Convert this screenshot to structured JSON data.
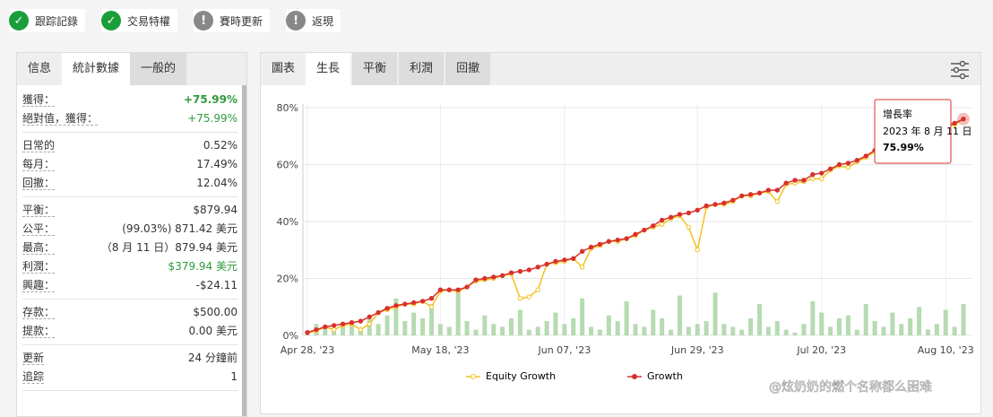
{
  "badges": [
    {
      "label": "跟踪記錄",
      "ok": true
    },
    {
      "label": "交易特權",
      "ok": true
    },
    {
      "label": "賽時更新",
      "ok": false
    },
    {
      "label": "返現",
      "ok": false
    }
  ],
  "stats_tabs": [
    "信息",
    "統計數據",
    "一般的"
  ],
  "stats_active": 1,
  "stats": [
    [
      {
        "label": "獲得：",
        "value": "+75.99%",
        "green": true,
        "bold": true
      },
      {
        "label": "絕對值，獲得：",
        "value": "+75.99%",
        "green": true
      }
    ],
    [
      {
        "label": "日常的",
        "value": "0.52%"
      },
      {
        "label": "每月：",
        "value": "17.49%"
      },
      {
        "label": "回撤：",
        "value": "12.04%"
      }
    ],
    [
      {
        "label": "平衡：",
        "value": "$879.94"
      },
      {
        "label": "公平：",
        "value": "(99.03%) 871.42 美元"
      },
      {
        "label": "最高：",
        "value": "（8 月 11 日）879.94 美元"
      },
      {
        "label": "利潤：",
        "value": "$379.94 美元",
        "green": true
      },
      {
        "label": "興趣：",
        "value": "-$24.11"
      }
    ],
    [
      {
        "label": "存款：",
        "value": "$500.00"
      },
      {
        "label": "提款：",
        "value": "0.00 美元"
      }
    ],
    [
      {
        "label": "更新",
        "value": "24 分鐘前"
      },
      {
        "label": "追踪",
        "value": "1"
      }
    ]
  ],
  "chart_tabs": [
    "圖表",
    "生長",
    "平衡",
    "利潤",
    "回撤"
  ],
  "chart_active": 1,
  "chart_data": {
    "type": "line",
    "grid": true,
    "categories": [
      "Apr 28, '23",
      null,
      null,
      null,
      null,
      null,
      null,
      null,
      null,
      null,
      null,
      null,
      null,
      null,
      null,
      "May 18, '23",
      null,
      null,
      null,
      null,
      null,
      null,
      null,
      null,
      null,
      null,
      null,
      null,
      null,
      "Jun 07, '23",
      null,
      null,
      null,
      null,
      null,
      null,
      null,
      null,
      null,
      null,
      null,
      null,
      null,
      null,
      "Jun 29, '23",
      null,
      null,
      null,
      null,
      null,
      null,
      null,
      null,
      null,
      null,
      null,
      null,
      null,
      "Jul 20, '23",
      null,
      null,
      null,
      null,
      null,
      null,
      null,
      null,
      null,
      null,
      null,
      null,
      null,
      "Aug 10, '23",
      null,
      null
    ],
    "ylim": [
      0,
      80
    ],
    "yticks": [
      {
        "value": 0,
        "label": "0%"
      },
      {
        "value": 20,
        "label": "20%"
      },
      {
        "value": 40,
        "label": "40%"
      },
      {
        "value": 60,
        "label": "60%"
      },
      {
        "value": 80,
        "label": "80%"
      }
    ],
    "series": [
      {
        "name": "Equity Growth",
        "color": "#f2c11c",
        "values": [
          1,
          1.5,
          3,
          2,
          3.5,
          4,
          2,
          4,
          8,
          9,
          10,
          11,
          11,
          12,
          10,
          15.5,
          16,
          15.5,
          17,
          19,
          19.5,
          20,
          21,
          21.5,
          13,
          13.5,
          16,
          25,
          25.5,
          26,
          27,
          24,
          30.5,
          31.5,
          33,
          33,
          34,
          35,
          37,
          38,
          39,
          41,
          42,
          38,
          30,
          45,
          46,
          46,
          47,
          49,
          49,
          50,
          50.5,
          47,
          53,
          53.5,
          54,
          55,
          55,
          58,
          59.5,
          59,
          61,
          62.5,
          64.5,
          66,
          66.5,
          67.5,
          68.5,
          70,
          70.5,
          72,
          73,
          74,
          75.99
        ]
      },
      {
        "name": "Growth",
        "color": "#d9302c",
        "values": [
          1,
          2,
          3,
          3.5,
          4,
          4.5,
          5,
          6.5,
          8,
          9.5,
          10.5,
          11,
          11.5,
          12,
          13,
          16,
          16,
          16,
          17,
          19.5,
          20,
          20.5,
          21,
          22,
          22.5,
          23,
          24,
          25,
          26,
          26.5,
          27,
          29.5,
          31,
          32,
          33,
          33.5,
          34,
          35.5,
          37,
          38.5,
          40.5,
          41.5,
          42.5,
          43,
          44,
          45.5,
          46,
          46.5,
          47.5,
          49,
          49.5,
          50,
          51,
          51,
          53.5,
          54.5,
          54.5,
          56.5,
          57,
          58.5,
          60,
          60.5,
          61.5,
          63,
          65,
          66.5,
          66.5,
          68,
          69,
          70.5,
          71,
          72.5,
          73.5,
          74.5,
          75.99
        ]
      }
    ],
    "bars": {
      "color": "#b5dbb0",
      "values": [
        1,
        4,
        3,
        2,
        3,
        5,
        2,
        6,
        4,
        7,
        13,
        5,
        8,
        6,
        11,
        4,
        3,
        15,
        5,
        2,
        7,
        4,
        3,
        6,
        9,
        2,
        3,
        5,
        8,
        4,
        6,
        13,
        3,
        2,
        7,
        5,
        12,
        4,
        3,
        9,
        6,
        2,
        14,
        3,
        4,
        5,
        15,
        4,
        3,
        2,
        6,
        11,
        3,
        5,
        2,
        1,
        4,
        12,
        8,
        3,
        6,
        7,
        2,
        11,
        5,
        3,
        8,
        4,
        6,
        10,
        2,
        4,
        9,
        3,
        11
      ]
    },
    "tooltip": {
      "title": "增長率",
      "date": "2023 年 8 月 11 日",
      "value": "75.99%"
    }
  },
  "watermark": "@炫奶奶的燃个名称都么困难"
}
